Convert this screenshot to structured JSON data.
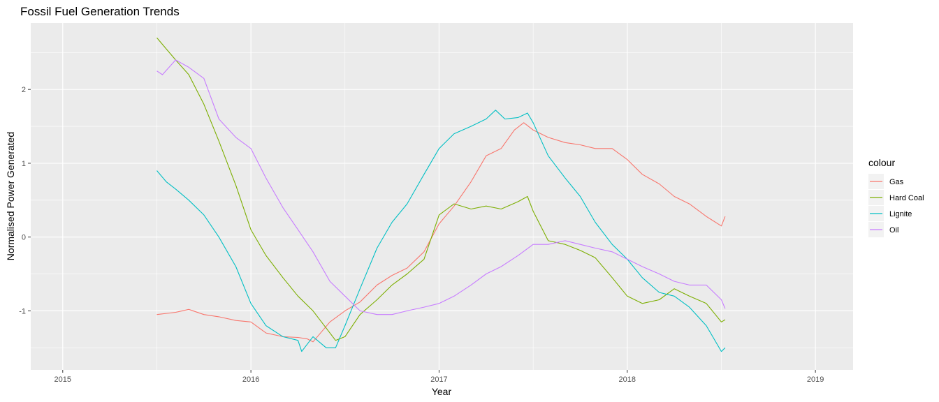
{
  "chart_data": {
    "type": "line",
    "title": "Fossil Fuel Generation Trends",
    "xlabel": "Year",
    "ylabel": "Normalised Power Generated",
    "xlim": [
      2014.83,
      2019.2
    ],
    "ylim": [
      -1.8,
      2.9
    ],
    "x_ticks": [
      2015,
      2016,
      2017,
      2018,
      2019
    ],
    "x_tick_labels": [
      "2015",
      "2016",
      "2017",
      "2018",
      "2019"
    ],
    "y_ticks": [
      -1,
      0,
      1,
      2
    ],
    "y_tick_labels": [
      "-1",
      "0",
      "1",
      "2"
    ],
    "grid": true,
    "legend_title": "colour",
    "legend_position": "right",
    "series": [
      {
        "name": "Gas",
        "color": "#F8766D",
        "x": [
          2015.5,
          2015.6,
          2015.67,
          2015.75,
          2015.83,
          2015.92,
          2016.0,
          2016.08,
          2016.17,
          2016.25,
          2016.3,
          2016.33,
          2016.42,
          2016.5,
          2016.58,
          2016.67,
          2016.75,
          2016.83,
          2016.92,
          2017.0,
          2017.08,
          2017.17,
          2017.25,
          2017.33,
          2017.4,
          2017.45,
          2017.5,
          2017.58,
          2017.67,
          2017.75,
          2017.83,
          2017.92,
          2018.0,
          2018.08,
          2018.17,
          2018.25,
          2018.33,
          2018.42,
          2018.5,
          2018.52
        ],
        "values": [
          -1.05,
          -1.02,
          -0.98,
          -1.05,
          -1.08,
          -1.13,
          -1.15,
          -1.3,
          -1.35,
          -1.36,
          -1.38,
          -1.42,
          -1.15,
          -1.0,
          -0.88,
          -0.65,
          -0.52,
          -0.42,
          -0.2,
          0.18,
          0.42,
          0.75,
          1.1,
          1.2,
          1.45,
          1.55,
          1.45,
          1.35,
          1.28,
          1.25,
          1.2,
          1.2,
          1.05,
          0.85,
          0.72,
          0.55,
          0.45,
          0.28,
          0.15,
          0.28
        ]
      },
      {
        "name": "Hard Coal",
        "color": "#7CAE00",
        "x": [
          2015.5,
          2015.55,
          2015.6,
          2015.67,
          2015.75,
          2015.83,
          2015.92,
          2016.0,
          2016.08,
          2016.17,
          2016.25,
          2016.33,
          2016.42,
          2016.45,
          2016.5,
          2016.58,
          2016.67,
          2016.75,
          2016.83,
          2016.92,
          2017.0,
          2017.08,
          2017.17,
          2017.25,
          2017.33,
          2017.42,
          2017.47,
          2017.5,
          2017.58,
          2017.67,
          2017.75,
          2017.83,
          2017.92,
          2018.0,
          2018.08,
          2018.17,
          2018.25,
          2018.33,
          2018.42,
          2018.5,
          2018.52
        ],
        "values": [
          2.7,
          2.55,
          2.4,
          2.2,
          1.8,
          1.3,
          0.7,
          0.1,
          -0.25,
          -0.55,
          -0.8,
          -1.0,
          -1.3,
          -1.4,
          -1.35,
          -1.05,
          -0.85,
          -0.65,
          -0.5,
          -0.3,
          0.3,
          0.45,
          0.38,
          0.42,
          0.38,
          0.48,
          0.55,
          0.35,
          -0.05,
          -0.1,
          -0.18,
          -0.28,
          -0.55,
          -0.8,
          -0.9,
          -0.85,
          -0.7,
          -0.8,
          -0.9,
          -1.15,
          -1.12
        ]
      },
      {
        "name": "Lignite",
        "color": "#00BFC4",
        "x": [
          2015.5,
          2015.55,
          2015.6,
          2015.67,
          2015.75,
          2015.83,
          2015.92,
          2016.0,
          2016.08,
          2016.17,
          2016.25,
          2016.27,
          2016.33,
          2016.4,
          2016.45,
          2016.5,
          2016.58,
          2016.67,
          2016.75,
          2016.83,
          2016.92,
          2017.0,
          2017.08,
          2017.17,
          2017.25,
          2017.3,
          2017.35,
          2017.42,
          2017.47,
          2017.5,
          2017.58,
          2017.67,
          2017.75,
          2017.83,
          2017.92,
          2018.0,
          2018.08,
          2018.17,
          2018.25,
          2018.33,
          2018.42,
          2018.5,
          2018.52
        ],
        "values": [
          0.9,
          0.75,
          0.65,
          0.5,
          0.3,
          0.0,
          -0.4,
          -0.9,
          -1.2,
          -1.35,
          -1.4,
          -1.55,
          -1.35,
          -1.5,
          -1.5,
          -1.2,
          -0.7,
          -0.15,
          0.2,
          0.45,
          0.85,
          1.2,
          1.4,
          1.5,
          1.6,
          1.72,
          1.6,
          1.62,
          1.68,
          1.55,
          1.1,
          0.8,
          0.55,
          0.2,
          -0.1,
          -0.3,
          -0.55,
          -0.75,
          -0.8,
          -0.95,
          -1.2,
          -1.55,
          -1.5
        ]
      },
      {
        "name": "Oil",
        "color": "#C77CFF",
        "x": [
          2015.5,
          2015.53,
          2015.6,
          2015.67,
          2015.75,
          2015.83,
          2015.92,
          2016.0,
          2016.08,
          2016.17,
          2016.25,
          2016.33,
          2016.42,
          2016.5,
          2016.58,
          2016.67,
          2016.75,
          2016.83,
          2016.92,
          2017.0,
          2017.08,
          2017.17,
          2017.25,
          2017.33,
          2017.42,
          2017.5,
          2017.58,
          2017.67,
          2017.75,
          2017.83,
          2017.92,
          2018.0,
          2018.08,
          2018.17,
          2018.25,
          2018.33,
          2018.42,
          2018.5,
          2018.52
        ],
        "values": [
          2.25,
          2.2,
          2.4,
          2.3,
          2.15,
          1.6,
          1.35,
          1.2,
          0.8,
          0.4,
          0.1,
          -0.2,
          -0.6,
          -0.8,
          -1.0,
          -1.05,
          -1.05,
          -1.0,
          -0.95,
          -0.9,
          -0.8,
          -0.65,
          -0.5,
          -0.4,
          -0.25,
          -0.1,
          -0.1,
          -0.05,
          -0.1,
          -0.15,
          -0.2,
          -0.3,
          -0.4,
          -0.5,
          -0.6,
          -0.65,
          -0.65,
          -0.85,
          -0.97
        ]
      }
    ]
  }
}
